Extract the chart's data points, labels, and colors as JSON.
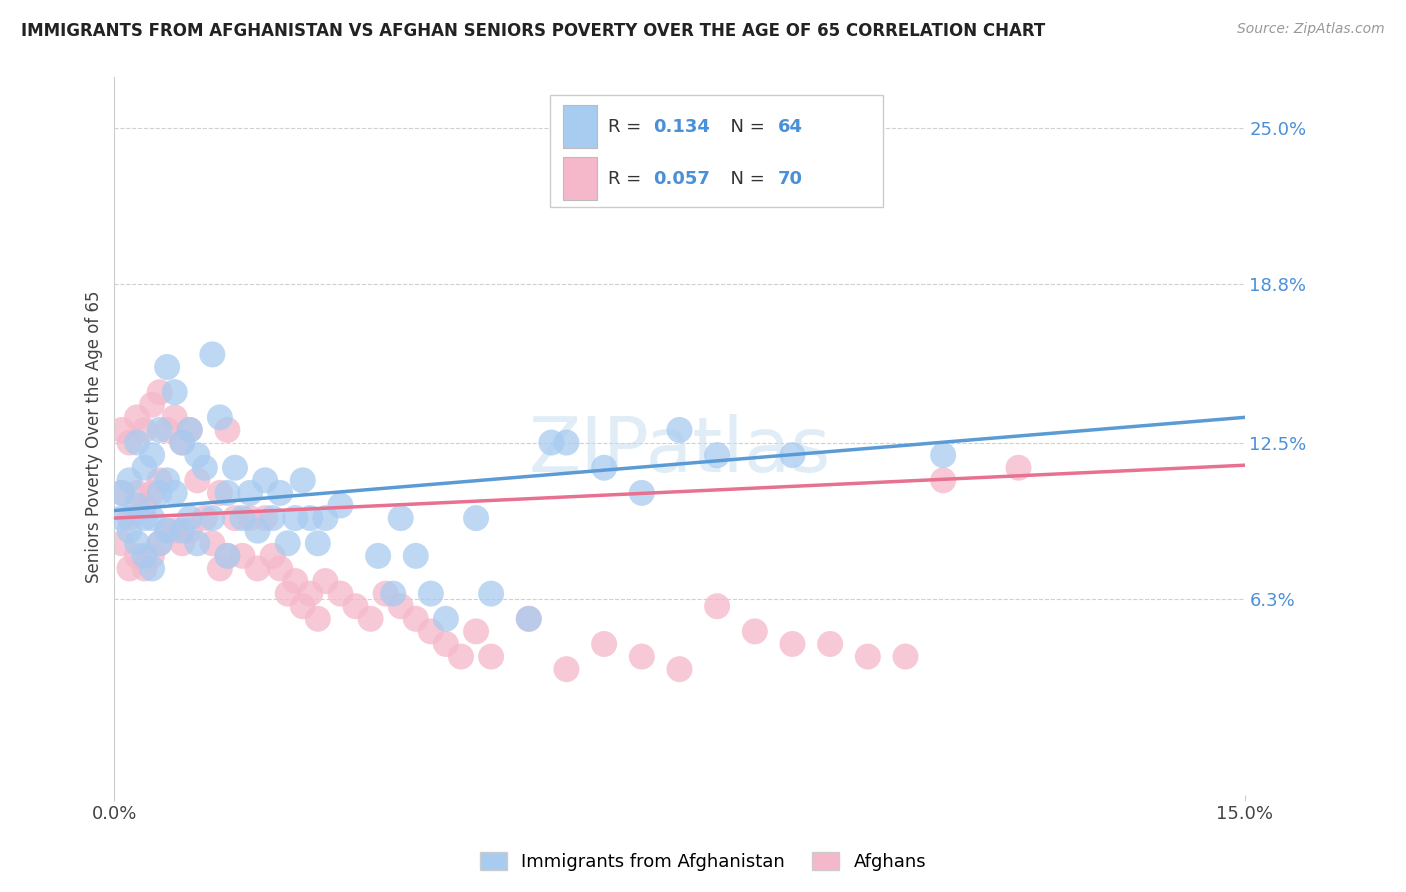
{
  "title": "IMMIGRANTS FROM AFGHANISTAN VS AFGHAN SENIORS POVERTY OVER THE AGE OF 65 CORRELATION CHART",
  "source": "Source: ZipAtlas.com",
  "ylabel_label": "Seniors Poverty Over the Age of 65",
  "right_yticks": [
    "25.0%",
    "18.8%",
    "12.5%",
    "6.3%"
  ],
  "right_ytick_vals": [
    0.25,
    0.188,
    0.125,
    0.063
  ],
  "xlim": [
    0.0,
    0.15
  ],
  "ylim": [
    -0.015,
    0.27
  ],
  "bottom_legend": [
    "Immigrants from Afghanistan",
    "Afghans"
  ],
  "blue_color": "#A8CBF0",
  "pink_color": "#F5B8CA",
  "line_blue": "#5B9BD5",
  "line_pink": "#E87090",
  "watermark_color": "#C8DFF0",
  "background_color": "#ffffff",
  "grid_color": "#d0d0d0",
  "blue_x": [
    0.001,
    0.001,
    0.002,
    0.002,
    0.003,
    0.003,
    0.003,
    0.004,
    0.004,
    0.004,
    0.005,
    0.005,
    0.005,
    0.006,
    0.006,
    0.006,
    0.007,
    0.007,
    0.007,
    0.008,
    0.008,
    0.009,
    0.009,
    0.01,
    0.01,
    0.011,
    0.011,
    0.012,
    0.013,
    0.013,
    0.014,
    0.015,
    0.015,
    0.016,
    0.017,
    0.018,
    0.019,
    0.02,
    0.021,
    0.022,
    0.023,
    0.024,
    0.025,
    0.026,
    0.027,
    0.028,
    0.03,
    0.035,
    0.037,
    0.038,
    0.04,
    0.042,
    0.044,
    0.048,
    0.05,
    0.055,
    0.058,
    0.06,
    0.065,
    0.07,
    0.075,
    0.08,
    0.09,
    0.11
  ],
  "blue_y": [
    0.105,
    0.095,
    0.11,
    0.09,
    0.125,
    0.1,
    0.085,
    0.115,
    0.095,
    0.08,
    0.12,
    0.095,
    0.075,
    0.13,
    0.105,
    0.085,
    0.155,
    0.11,
    0.09,
    0.145,
    0.105,
    0.125,
    0.09,
    0.13,
    0.095,
    0.12,
    0.085,
    0.115,
    0.16,
    0.095,
    0.135,
    0.105,
    0.08,
    0.115,
    0.095,
    0.105,
    0.09,
    0.11,
    0.095,
    0.105,
    0.085,
    0.095,
    0.11,
    0.095,
    0.085,
    0.095,
    0.1,
    0.08,
    0.065,
    0.095,
    0.08,
    0.065,
    0.055,
    0.095,
    0.065,
    0.055,
    0.125,
    0.125,
    0.115,
    0.105,
    0.13,
    0.12,
    0.12,
    0.12
  ],
  "pink_x": [
    0.001,
    0.001,
    0.001,
    0.002,
    0.002,
    0.002,
    0.003,
    0.003,
    0.003,
    0.004,
    0.004,
    0.004,
    0.005,
    0.005,
    0.005,
    0.006,
    0.006,
    0.006,
    0.007,
    0.007,
    0.008,
    0.008,
    0.009,
    0.009,
    0.01,
    0.01,
    0.011,
    0.012,
    0.013,
    0.014,
    0.014,
    0.015,
    0.015,
    0.016,
    0.017,
    0.018,
    0.019,
    0.02,
    0.021,
    0.022,
    0.023,
    0.024,
    0.025,
    0.026,
    0.027,
    0.028,
    0.03,
    0.032,
    0.034,
    0.036,
    0.038,
    0.04,
    0.042,
    0.044,
    0.046,
    0.048,
    0.05,
    0.055,
    0.06,
    0.065,
    0.07,
    0.075,
    0.08,
    0.085,
    0.09,
    0.095,
    0.1,
    0.105,
    0.11,
    0.12
  ],
  "pink_y": [
    0.13,
    0.105,
    0.085,
    0.125,
    0.095,
    0.075,
    0.135,
    0.105,
    0.08,
    0.13,
    0.1,
    0.075,
    0.14,
    0.105,
    0.08,
    0.145,
    0.11,
    0.085,
    0.13,
    0.09,
    0.135,
    0.09,
    0.125,
    0.085,
    0.13,
    0.09,
    0.11,
    0.095,
    0.085,
    0.105,
    0.075,
    0.13,
    0.08,
    0.095,
    0.08,
    0.095,
    0.075,
    0.095,
    0.08,
    0.075,
    0.065,
    0.07,
    0.06,
    0.065,
    0.055,
    0.07,
    0.065,
    0.06,
    0.055,
    0.065,
    0.06,
    0.055,
    0.05,
    0.045,
    0.04,
    0.05,
    0.04,
    0.055,
    0.035,
    0.045,
    0.04,
    0.035,
    0.06,
    0.05,
    0.045,
    0.045,
    0.04,
    0.04,
    0.11,
    0.115
  ],
  "blue_line_x0": 0.0,
  "blue_line_x1": 0.15,
  "blue_line_y0": 0.098,
  "blue_line_y1": 0.135,
  "pink_line_x0": 0.0,
  "pink_line_x1": 0.15,
  "pink_line_y0": 0.095,
  "pink_line_y1": 0.116
}
